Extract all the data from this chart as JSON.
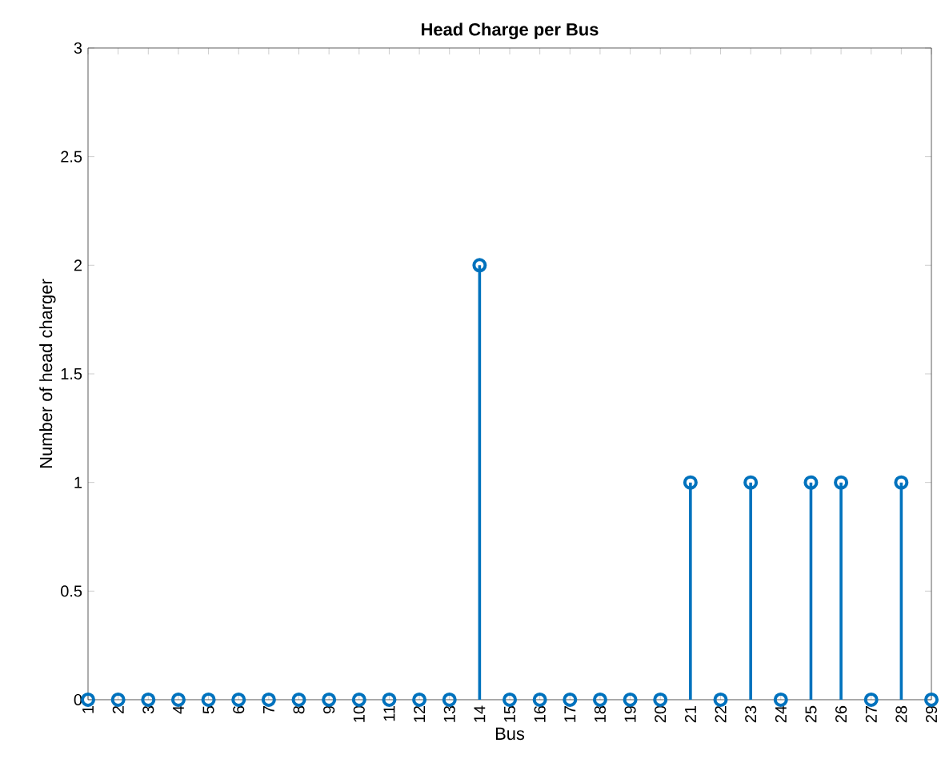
{
  "chart_data": {
    "type": "lollipop",
    "title": "Head Charge per Bus",
    "xlabel": "Bus",
    "ylabel": "Number of head charger",
    "x": [
      1,
      2,
      3,
      4,
      5,
      6,
      7,
      8,
      9,
      10,
      11,
      12,
      13,
      14,
      15,
      16,
      17,
      18,
      19,
      20,
      21,
      22,
      23,
      24,
      25,
      26,
      27,
      28,
      29
    ],
    "values": [
      0,
      0,
      0,
      0,
      0,
      0,
      0,
      0,
      0,
      0,
      0,
      0,
      0,
      2,
      0,
      0,
      0,
      0,
      0,
      0,
      1,
      0,
      1,
      0,
      1,
      1,
      0,
      1,
      0
    ],
    "color": "#0072bd",
    "marker": "circle",
    "xlim": [
      1,
      29
    ],
    "xticks": [
      1,
      2,
      3,
      4,
      5,
      6,
      7,
      8,
      9,
      10,
      11,
      12,
      13,
      14,
      15,
      16,
      17,
      18,
      19,
      20,
      21,
      22,
      23,
      24,
      25,
      26,
      27,
      28,
      29
    ],
    "ylim": [
      0,
      3
    ],
    "yticks": [
      0,
      0.5,
      1,
      1.5,
      2,
      2.5,
      3
    ]
  }
}
